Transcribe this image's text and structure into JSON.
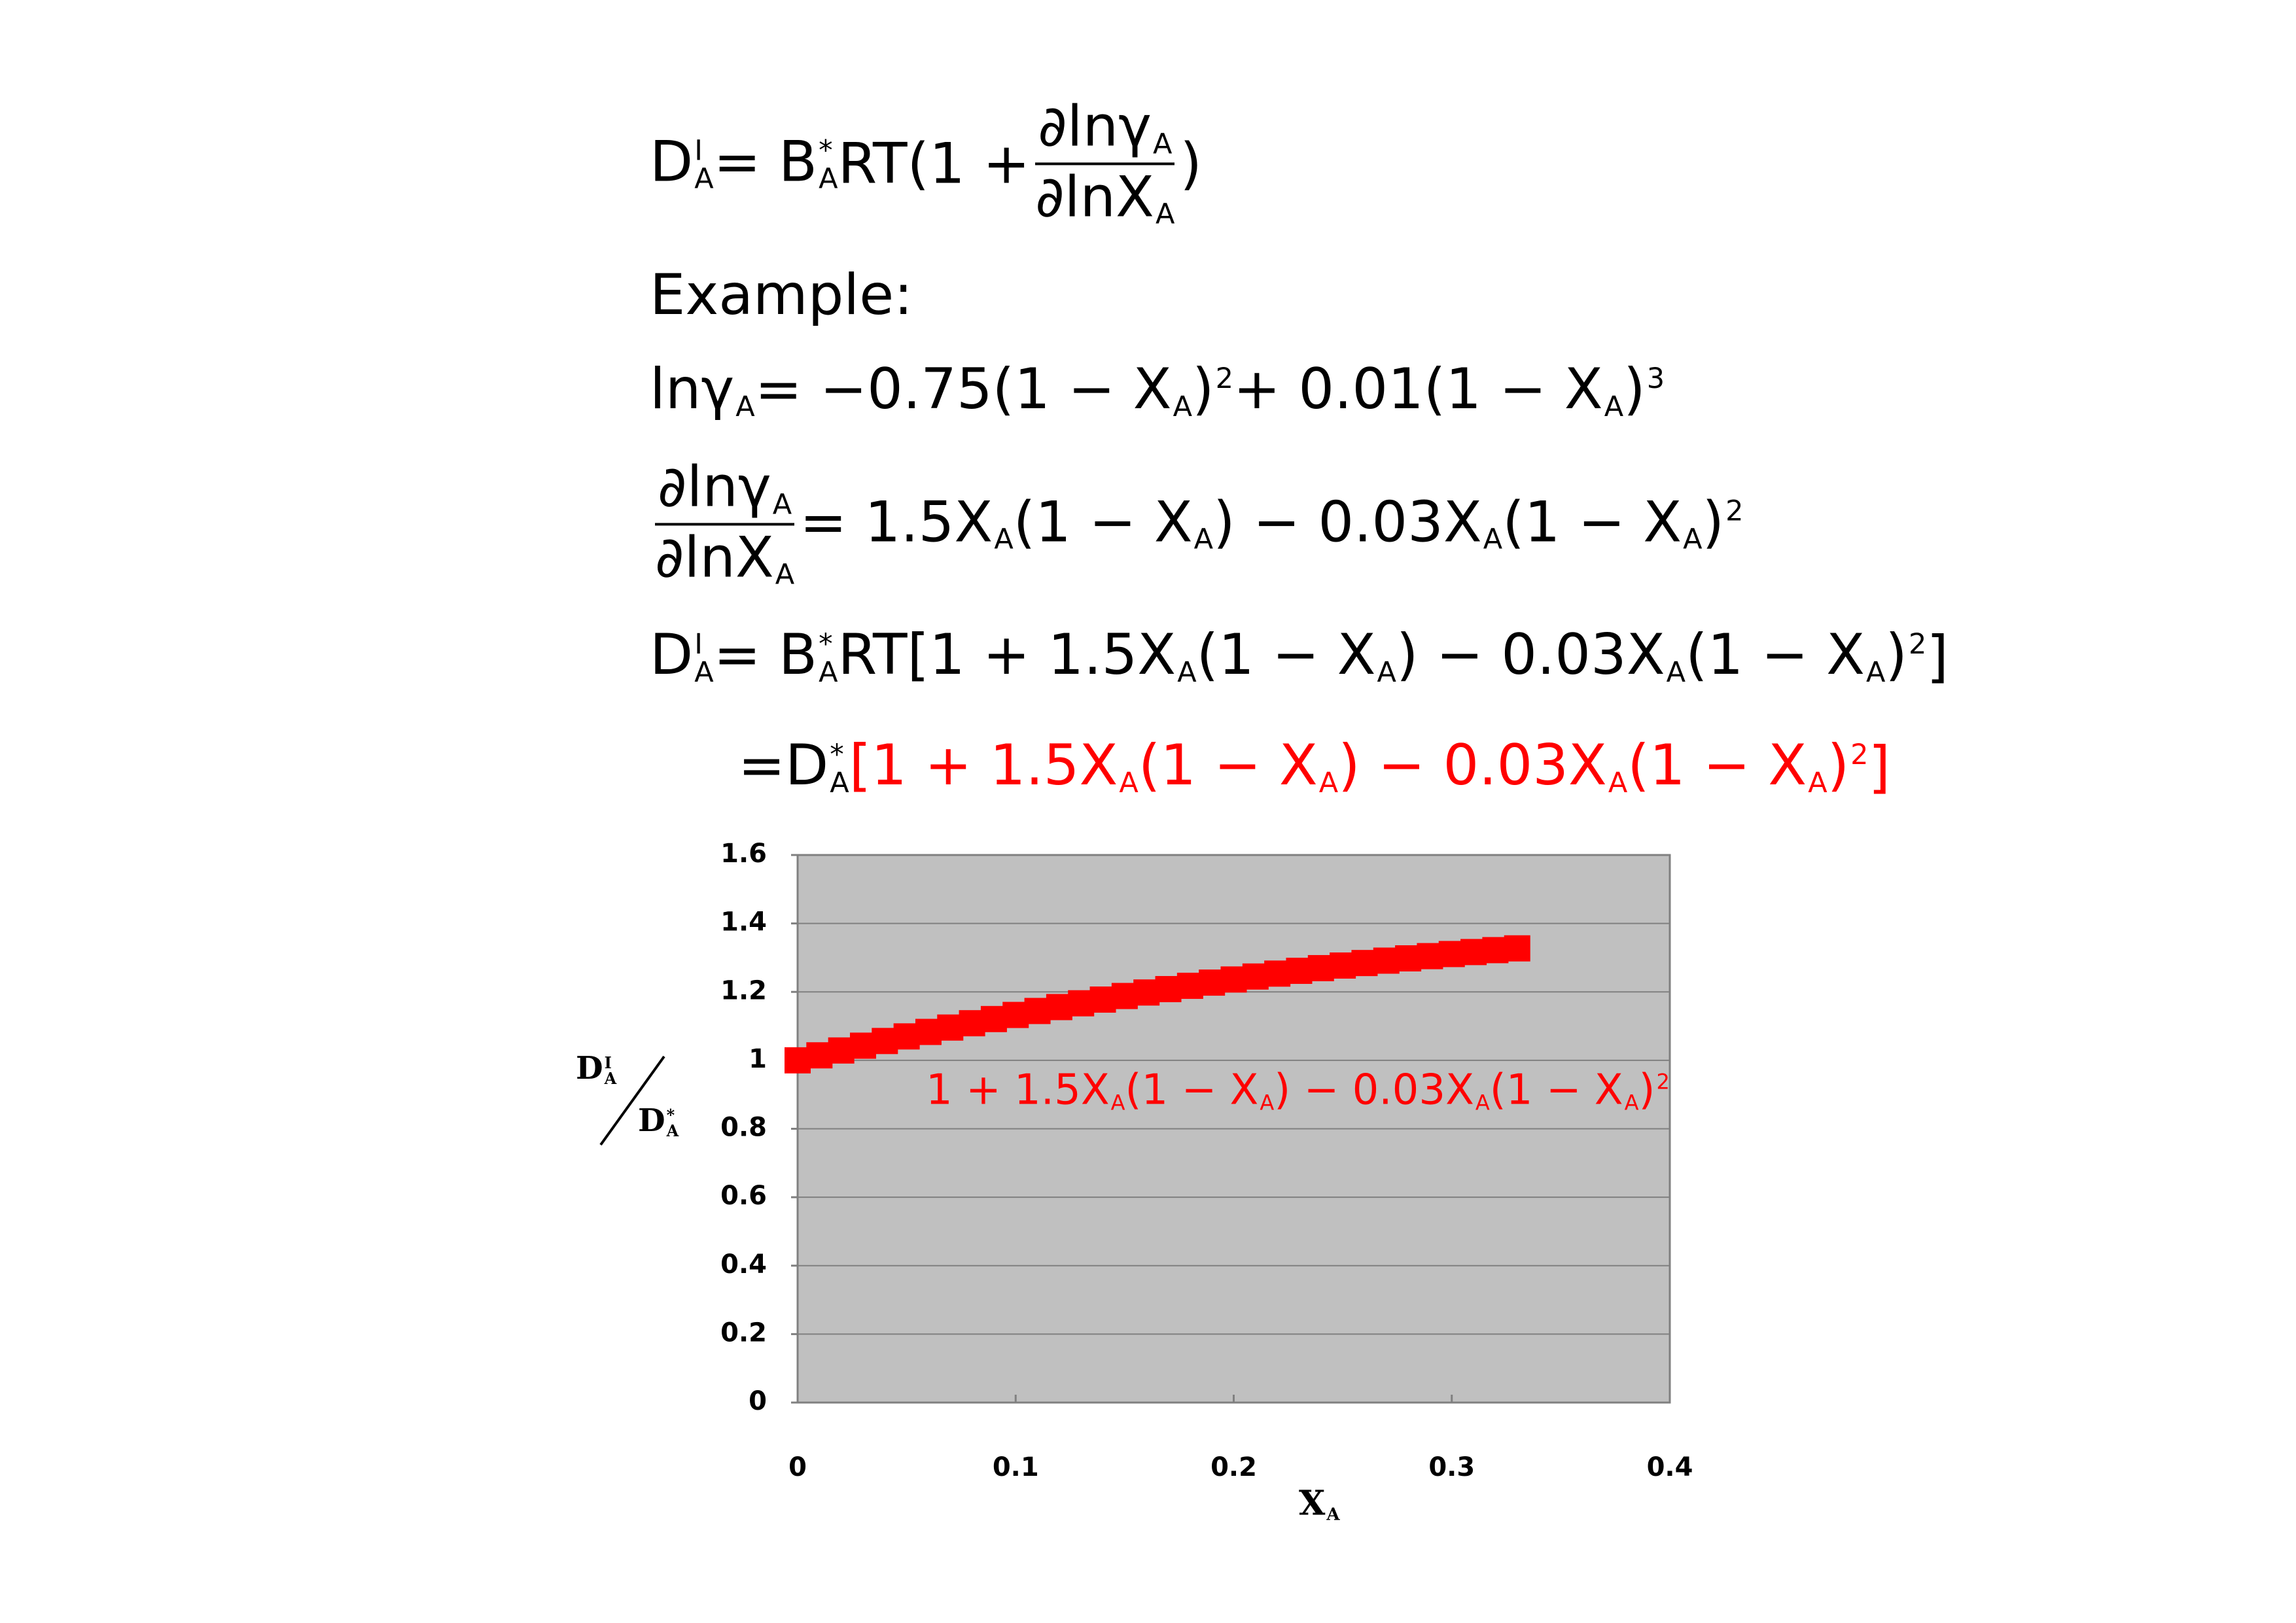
{
  "equations": [
    {
      "parts": [
        {
          "text": "D",
          "sup": "I",
          "sub": "A"
        },
        {
          "text": " = B",
          "sup": "*",
          "sub": "A"
        },
        {
          "text": "RT(1 + "
        },
        {
          "num": [
            {
              "text": "∂lnγ",
              "sub": "A"
            }
          ],
          "den": [
            {
              "text": "∂lnX",
              "sub": "A"
            }
          ]
        },
        {
          "text": ")"
        }
      ]
    },
    {
      "parts": [
        {
          "text": "Example:"
        }
      ]
    },
    {
      "parts": [
        {
          "text": "lnγ",
          "sub": "A"
        },
        {
          "text": " = −0.75(1 − X",
          "sub": "A"
        },
        {
          "text": ")",
          "sup": "2"
        },
        {
          "text": " + 0.01(1 − X",
          "sub": "A"
        },
        {
          "text": ")",
          "sup": "3"
        }
      ]
    },
    {
      "parts": [
        {
          "num": [
            {
              "text": "∂lnγ",
              "sub": "A"
            }
          ],
          "den": [
            {
              "text": "∂lnX",
              "sub": "A"
            }
          ]
        },
        {
          "text": " = 1.5X",
          "sub": "A"
        },
        {
          "text": "(1 − X",
          "sub": "A"
        },
        {
          "text": ") − 0.03X",
          "sub": "A"
        },
        {
          "text": "(1 − X",
          "sub": "A"
        },
        {
          "text": ")",
          "sup": "2"
        }
      ]
    },
    {
      "parts": [
        {
          "text": "D",
          "sup": "I",
          "sub": "A"
        },
        {
          "text": " = B",
          "sup": "*",
          "sub": "A"
        },
        {
          "text": "RT[1 + 1.5X",
          "sub": "A"
        },
        {
          "text": "(1 − X",
          "sub": "A"
        },
        {
          "text": ") − 0.03X",
          "sub": "A"
        },
        {
          "text": "(1 − X",
          "sub": "A"
        },
        {
          "text": ")",
          "sup": "2"
        },
        {
          "text": "]"
        }
      ]
    },
    {
      "parts": [
        {
          "text": "=D",
          "sup": "*",
          "sub": "A"
        },
        {
          "text": "[1 + 1.5X",
          "sub": "A",
          "color": "#ff0000"
        },
        {
          "text": "(1 − X",
          "sub": "A",
          "color": "#ff0000"
        },
        {
          "text": ") − 0.03X",
          "sub": "A",
          "color": "#ff0000"
        },
        {
          "text": "(1 − X",
          "sub": "A",
          "color": "#ff0000"
        },
        {
          "text": ")",
          "sup": "2",
          "color": "#ff0000"
        },
        {
          "text": "]",
          "color": "#ff0000"
        }
      ]
    }
  ],
  "chart_data": {
    "type": "scatter",
    "x": [
      0,
      0.01,
      0.02,
      0.03,
      0.04,
      0.05,
      0.06,
      0.07,
      0.08,
      0.09,
      0.1,
      0.11,
      0.12,
      0.13,
      0.14,
      0.15,
      0.16,
      0.17,
      0.18,
      0.19,
      0.2,
      0.21,
      0.22,
      0.23,
      0.24,
      0.25,
      0.26,
      0.27,
      0.28,
      0.29,
      0.3,
      0.31,
      0.32,
      0.33
    ],
    "values": [
      1,
      1.0146,
      1.0288,
      1.0428,
      1.0565,
      1.0699,
      1.083,
      1.0958,
      1.1084,
      1.1206,
      1.1326,
      1.1442,
      1.1556,
      1.1667,
      1.1775,
      1.188,
      1.1982,
      1.2081,
      1.2178,
      1.2271,
      1.2362,
      1.2449,
      1.2534,
      1.2616,
      1.2694,
      1.277,
      1.2843,
      1.2913,
      1.298,
      1.3045,
      1.3106,
      1.3164,
      1.322,
      1.3272
    ],
    "color": "#ff0000",
    "marker": "square",
    "xlim": [
      0,
      0.4
    ],
    "xticks": [
      0,
      0.1,
      0.2,
      0.3,
      0.4
    ],
    "ylim": [
      0,
      1.6
    ],
    "yticks": [
      0,
      0.2,
      0.4,
      0.6,
      0.8,
      1,
      1.2,
      1.4,
      1.6
    ],
    "grid": true,
    "xlabel": {
      "text": "X",
      "sub": "A"
    },
    "ylabel": {
      "num": [
        {
          "text": "D",
          "sup": "I",
          "sub": "A"
        }
      ],
      "den": [
        {
          "text": "D",
          "sup": "*",
          "sub": "A"
        }
      ]
    },
    "annotation": {
      "color": "#ff0000",
      "parts": [
        {
          "text": "1 + 1.5X",
          "sub": "A"
        },
        {
          "text": "(1 − X",
          "sub": "A"
        },
        {
          "text": ") − 0.03X",
          "sub": "A"
        },
        {
          "text": "(1 − X",
          "sub": "A"
        },
        {
          "text": ")",
          "sup": "2"
        }
      ]
    }
  }
}
